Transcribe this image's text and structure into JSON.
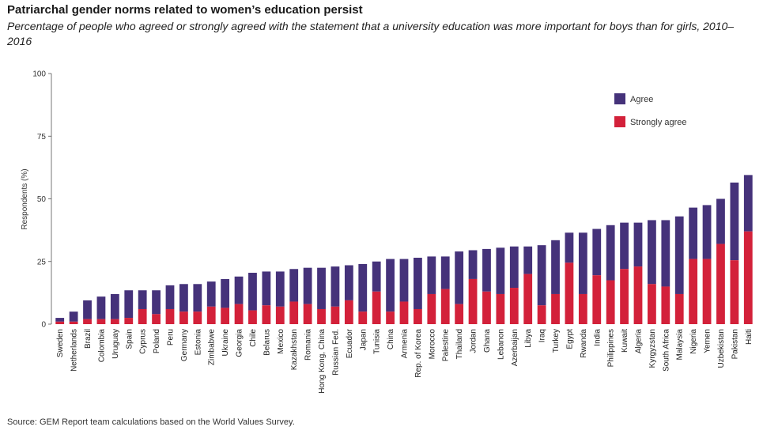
{
  "title": "Patriarchal gender norms related to women’s education persist",
  "subtitle": "Percentage of people who agreed or strongly agreed with the statement that a university education was more important for boys than for girls, 2010–2016",
  "source": "Source: GEM Report team calculations based on the World Values Survey.",
  "colors": {
    "agree": "#45327a",
    "strongly_agree": "#d3213a"
  },
  "chart_data": {
    "type": "bar",
    "stacked": true,
    "title": "Patriarchal gender norms related to women’s education persist",
    "subtitle": "Percentage of people who agreed or strongly agreed with the statement that a university education was more important for boys than for girls, 2010–2016",
    "xlabel": "",
    "ylabel": "Respondents (%)",
    "ylim": [
      0,
      100
    ],
    "yticks": [
      0,
      25,
      50,
      75,
      100
    ],
    "grid": false,
    "legend_position": "top-right",
    "categories": [
      "Sweden",
      "Netherlands",
      "Brazil",
      "Colombia",
      "Uruguay",
      "Spain",
      "Cyprus",
      "Poland",
      "Peru",
      "Germany",
      "Estonia",
      "Zimbabwe",
      "Ukraine",
      "Georgia",
      "Chile",
      "Belarus",
      "Mexico",
      "Kazakhstan",
      "Romania",
      "Hong Kong, China",
      "Russian Fed.",
      "Ecuador",
      "Japan",
      "Tunisia",
      "China",
      "Armenia",
      "Rep. of Korea",
      "Morocco",
      "Palestine",
      "Thailand",
      "Jordan",
      "Ghana",
      "Lebanon",
      "Azerbaijan",
      "Libya",
      "Iraq",
      "Turkey",
      "Egypt",
      "Rwanda",
      "India",
      "Philippines",
      "Kuwait",
      "Algeria",
      "Kyrgyzstan",
      "South Africa",
      "Malaysia",
      "Nigeria",
      "Yemen",
      "Uzbekistan",
      "Pakistan",
      "Haiti"
    ],
    "series": [
      {
        "name": "Strongly agree",
        "values": [
          1,
          1,
          2,
          2,
          2,
          2.5,
          6,
          4,
          6,
          5,
          5,
          7,
          6.5,
          8,
          5.5,
          7.5,
          7,
          9,
          8,
          6,
          7,
          9.5,
          5,
          13,
          5,
          9,
          6,
          12,
          14,
          8,
          18,
          13,
          12,
          14.5,
          20,
          7.5,
          12,
          24.5,
          12,
          19.5,
          17.5,
          22,
          23,
          16,
          15,
          12,
          26,
          26,
          32,
          25.5,
          37
        ]
      },
      {
        "name": "Agree",
        "values": [
          1.5,
          4,
          7.5,
          9,
          10,
          11,
          7.5,
          9.5,
          9.5,
          11,
          11,
          10,
          11.5,
          11,
          15,
          13.5,
          14,
          13,
          14.5,
          16.5,
          16,
          14,
          19,
          12,
          21,
          17,
          20.5,
          15,
          13,
          21,
          11.5,
          17,
          18.5,
          16.5,
          11,
          24,
          21.5,
          12,
          24.5,
          18.5,
          22,
          18.5,
          17.5,
          25.5,
          26.5,
          31,
          20.5,
          21.5,
          18,
          31,
          22.5
        ]
      }
    ]
  },
  "legend": {
    "agree_label": "Agree",
    "strongly_agree_label": "Strongly agree"
  }
}
